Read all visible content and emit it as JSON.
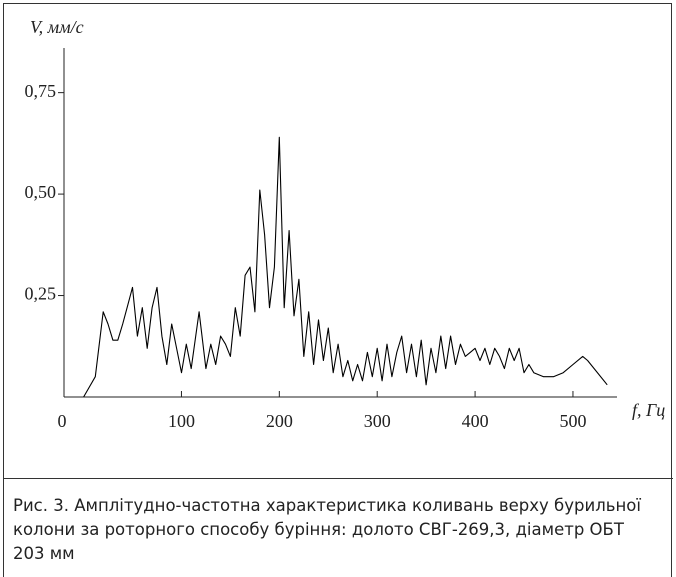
{
  "chart_data": {
    "type": "line",
    "y_label": "V, мм/с",
    "x_label": "f, Гц",
    "xlim": [
      -20,
      545
    ],
    "ylim": [
      0,
      0.86
    ],
    "xticks": [
      0,
      100,
      200,
      300,
      400,
      500
    ],
    "yticks": [
      {
        "value": 0.25,
        "label": "0,25"
      },
      {
        "value": 0.5,
        "label": "0,50"
      },
      {
        "value": 0.75,
        "label": "0,75"
      }
    ],
    "color": "#000000",
    "x": [
      0,
      12,
      20,
      25,
      30,
      35,
      40,
      50,
      55,
      60,
      65,
      70,
      75,
      80,
      85,
      90,
      95,
      100,
      105,
      110,
      118,
      125,
      130,
      135,
      140,
      145,
      150,
      155,
      160,
      165,
      170,
      175,
      180,
      185,
      190,
      195,
      200,
      205,
      210,
      215,
      220,
      225,
      230,
      235,
      240,
      245,
      250,
      255,
      260,
      265,
      270,
      275,
      280,
      285,
      290,
      295,
      300,
      305,
      310,
      315,
      320,
      325,
      330,
      335,
      340,
      345,
      350,
      355,
      360,
      365,
      370,
      375,
      380,
      385,
      390,
      395,
      400,
      405,
      410,
      415,
      420,
      425,
      430,
      435,
      440,
      445,
      450,
      455,
      460,
      470,
      480,
      490,
      500,
      510,
      515,
      535
    ],
    "values": [
      0,
      0.05,
      0.21,
      0.18,
      0.14,
      0.14,
      0.18,
      0.27,
      0.15,
      0.22,
      0.12,
      0.22,
      0.27,
      0.15,
      0.08,
      0.18,
      0.12,
      0.06,
      0.13,
      0.07,
      0.21,
      0.07,
      0.13,
      0.08,
      0.15,
      0.13,
      0.1,
      0.22,
      0.15,
      0.3,
      0.32,
      0.21,
      0.51,
      0.4,
      0.22,
      0.32,
      0.64,
      0.22,
      0.41,
      0.2,
      0.29,
      0.1,
      0.21,
      0.08,
      0.19,
      0.09,
      0.17,
      0.06,
      0.13,
      0.05,
      0.09,
      0.04,
      0.08,
      0.04,
      0.11,
      0.05,
      0.12,
      0.04,
      0.13,
      0.05,
      0.11,
      0.15,
      0.06,
      0.13,
      0.05,
      0.14,
      0.03,
      0.12,
      0.06,
      0.15,
      0.07,
      0.15,
      0.08,
      0.13,
      0.1,
      0.11,
      0.12,
      0.09,
      0.12,
      0.08,
      0.12,
      0.1,
      0.07,
      0.12,
      0.09,
      0.12,
      0.06,
      0.08,
      0.06,
      0.05,
      0.05,
      0.06,
      0.08,
      0.1,
      0.09,
      0.03
    ]
  },
  "caption": "Рис. 3. Амплітудно-частотна характеристика коливань верху бурильної колони за роторного способу буріння: долото СВГ-269,3, діаметр ОБТ 203 мм"
}
